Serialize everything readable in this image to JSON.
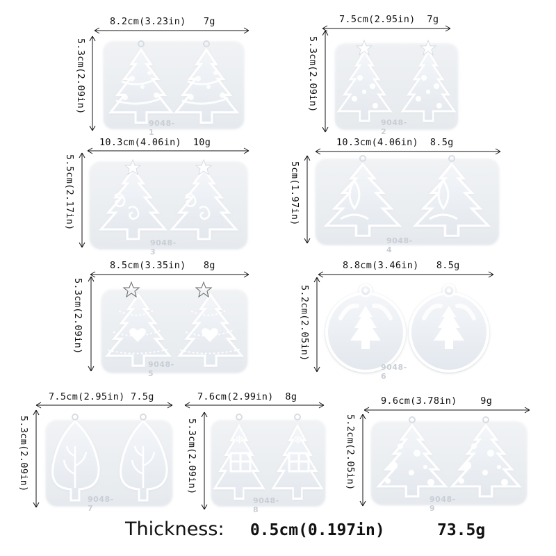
{
  "molds": [
    {
      "code": "9048-1",
      "width": "8.2cm(3.23in)",
      "weight": "7g",
      "height": "5.3cm(2.09in)",
      "shape": "tree-balls"
    },
    {
      "code": "9048-2",
      "width": "7.5cm(2.95in)",
      "weight": "7g",
      "height": "5.3cm(2.09in)",
      "shape": "tree-star-dots"
    },
    {
      "code": "9048-3",
      "width": "10.3cm(4.06in)",
      "weight": "10g",
      "height": "5.5cm(2.17in)",
      "shape": "tree-swirl"
    },
    {
      "code": "9048-4",
      "width": "10.3cm(4.06in)",
      "weight": "8.5g",
      "height": "5cm(1.97in)",
      "shape": "tree-ornament"
    },
    {
      "code": "9048-5",
      "width": "8.5cm(3.35in)",
      "weight": "8g",
      "height": "5.3cm(2.09in)",
      "shape": "tree-heart"
    },
    {
      "code": "9048-6",
      "width": "8.8cm(3.46in)",
      "weight": "8.5g",
      "height": "5.2cm(2.05in)",
      "shape": "round-bauble"
    },
    {
      "code": "9048-7",
      "width": "7.5cm(2.95in)",
      "weight": "7.5g",
      "height": "5.3cm(2.09in)",
      "shape": "tree-of-life"
    },
    {
      "code": "9048-8",
      "width": "7.6cm(2.99in)",
      "weight": "8g",
      "height": "5.3cm(2.09in)",
      "shape": "tree-gift"
    },
    {
      "code": "9048-9",
      "width": "9.6cm(3.78in)",
      "weight": "9g",
      "height": "5.2cm(2.05in)",
      "shape": "tree-dots"
    }
  ],
  "footer": {
    "label": "Thickness:",
    "thickness": "0.5cm(0.197in)",
    "total_weight": "73.5g"
  },
  "colors": {
    "mold_fill": "#eef1f5",
    "mold_edge": "#ffffff",
    "mold_pattern": "#ffffff",
    "text": "#111111"
  }
}
